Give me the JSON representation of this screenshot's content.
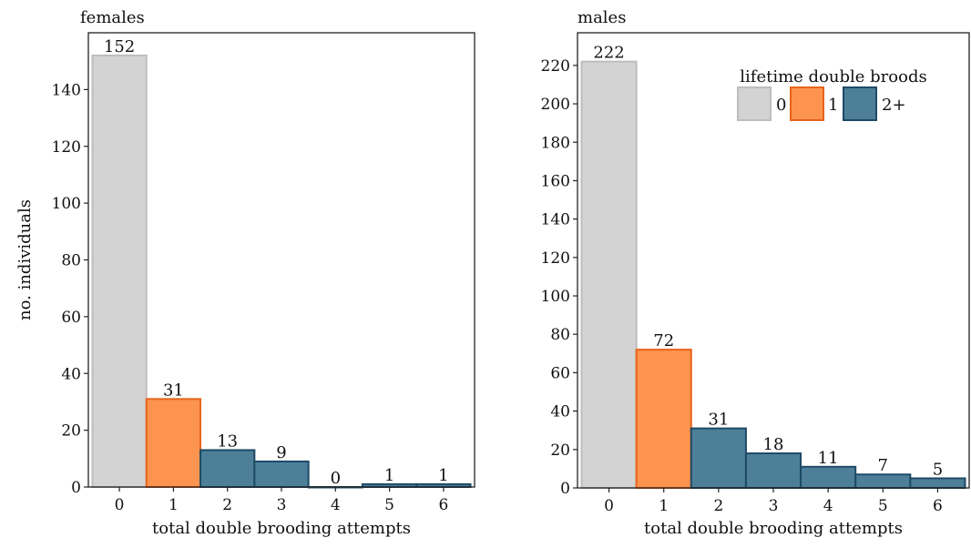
{
  "chart_data": [
    {
      "type": "bar",
      "title": "females",
      "xlabel": "total double brooding attempts",
      "ylabel": "no. individuals",
      "categories": [
        "0",
        "1",
        "2",
        "3",
        "4",
        "5",
        "6"
      ],
      "values": [
        152,
        31,
        13,
        9,
        0,
        1,
        1
      ],
      "data_labels": [
        "152",
        "31",
        "13",
        "9",
        "0",
        "1",
        "1"
      ],
      "groups": [
        "0",
        "1",
        "2+",
        "2+",
        "2+",
        "2+",
        "2+"
      ],
      "ylim": [
        0,
        160
      ],
      "yticks": [
        0,
        20,
        40,
        60,
        80,
        100,
        120,
        140
      ],
      "grid": false,
      "legend": false
    },
    {
      "type": "bar",
      "title": "males",
      "xlabel": "total double brooding attempts",
      "ylabel": "",
      "categories": [
        "0",
        "1",
        "2",
        "3",
        "4",
        "5",
        "6"
      ],
      "values": [
        222,
        72,
        31,
        18,
        11,
        7,
        5
      ],
      "data_labels": [
        "222",
        "72",
        "31",
        "18",
        "11",
        "7",
        "5"
      ],
      "groups": [
        "0",
        "1",
        "2+",
        "2+",
        "2+",
        "2+",
        "2+"
      ],
      "ylim": [
        0,
        237
      ],
      "yticks": [
        0,
        20,
        40,
        60,
        80,
        100,
        120,
        140,
        160,
        180,
        200,
        220
      ],
      "grid": false,
      "legend": true,
      "legend_placement": "top-right"
    }
  ],
  "legend": {
    "title": "lifetime double broods",
    "entries": [
      {
        "label": "0",
        "group": "0"
      },
      {
        "label": "1",
        "group": "1"
      },
      {
        "label": "2+",
        "group": "2+"
      }
    ]
  },
  "colors": {
    "0": {
      "fill": "#d3d3d3",
      "stroke": "#bdbdbd"
    },
    "1": {
      "fill": "#fc944f",
      "stroke": "#e8641b"
    },
    "2+": {
      "fill": "#4d7f99",
      "stroke": "#1f4a66"
    }
  }
}
